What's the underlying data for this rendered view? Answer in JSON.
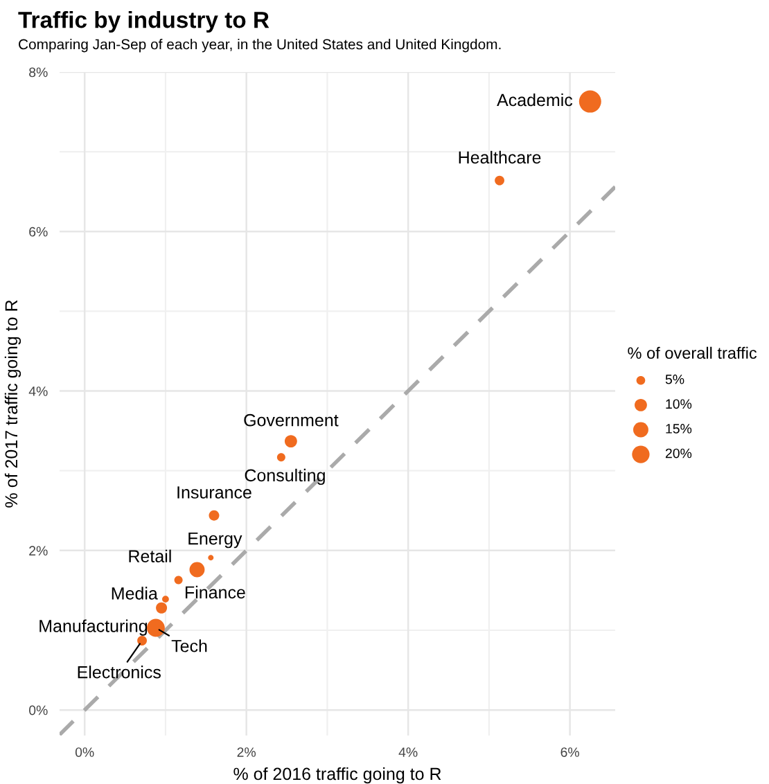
{
  "chart_data": {
    "type": "bubble",
    "title": "Traffic by industry to R",
    "subtitle": "Comparing Jan-Sep of each year, in the United States and United Kingdom.",
    "xlabel": "% of 2016 traffic going to R",
    "ylabel": "% of 2017 traffic going to R",
    "legend_title": "% of overall traffic",
    "xlim": [
      -0.31,
      6.56
    ],
    "ylim": [
      -0.32,
      8.0
    ],
    "xticks": [
      {
        "value": 0,
        "label": "0%"
      },
      {
        "value": 2,
        "label": "2%"
      },
      {
        "value": 4,
        "label": "4%"
      },
      {
        "value": 6,
        "label": "6%"
      }
    ],
    "yticks": [
      {
        "value": 0,
        "label": "0%"
      },
      {
        "value": 2,
        "label": "2%"
      },
      {
        "value": 4,
        "label": "4%"
      },
      {
        "value": 6,
        "label": "6%"
      },
      {
        "value": 8,
        "label": "8%"
      }
    ],
    "grid": true,
    "size_legend": [
      {
        "value": 5,
        "label": "5%"
      },
      {
        "value": 10,
        "label": "10%"
      },
      {
        "value": 15,
        "label": "15%"
      },
      {
        "value": 20,
        "label": "20%"
      }
    ],
    "series": [
      {
        "color": "#f06b1f",
        "x": [
          6.25,
          5.13,
          2.55,
          2.43,
          1.6,
          1.56,
          1.39,
          1.16,
          1.0,
          0.95,
          0.88,
          0.71
        ],
        "values": [
          7.63,
          6.64,
          3.37,
          3.17,
          2.44,
          1.91,
          1.76,
          1.63,
          1.39,
          1.28,
          1.03,
          0.87
        ],
        "sizes": [
          32,
          6,
          10,
          4.5,
          7,
          2,
          15,
          4.5,
          3,
          8,
          21,
          6
        ]
      },
      {
        "type": "line",
        "color": "#aaaaaa",
        "line_style": "dashed",
        "x": [
          -0.31,
          6.56
        ],
        "values": [
          -0.31,
          6.56
        ]
      }
    ],
    "annotations": [
      {
        "text": "Academic",
        "x": 6.25,
        "y": 7.63
      },
      {
        "text": "Healthcare",
        "x": 5.13,
        "y": 6.64
      },
      {
        "text": "Government",
        "x": 2.55,
        "y": 3.37
      },
      {
        "text": "Consulting",
        "x": 2.43,
        "y": 3.17
      },
      {
        "text": "Insurance",
        "x": 1.6,
        "y": 2.44
      },
      {
        "text": "Energy",
        "x": 1.56,
        "y": 1.91
      },
      {
        "text": "Retail",
        "x": 1.39,
        "y": 1.76
      },
      {
        "text": "Finance",
        "x": 1.16,
        "y": 1.63
      },
      {
        "text": "Media",
        "x": 1.0,
        "y": 1.39
      },
      {
        "text": "Manufacturing",
        "x": 0.95,
        "y": 1.28
      },
      {
        "text": "Tech",
        "x": 0.88,
        "y": 1.03
      },
      {
        "text": "Electronics",
        "x": 0.71,
        "y": 0.87
      }
    ]
  }
}
